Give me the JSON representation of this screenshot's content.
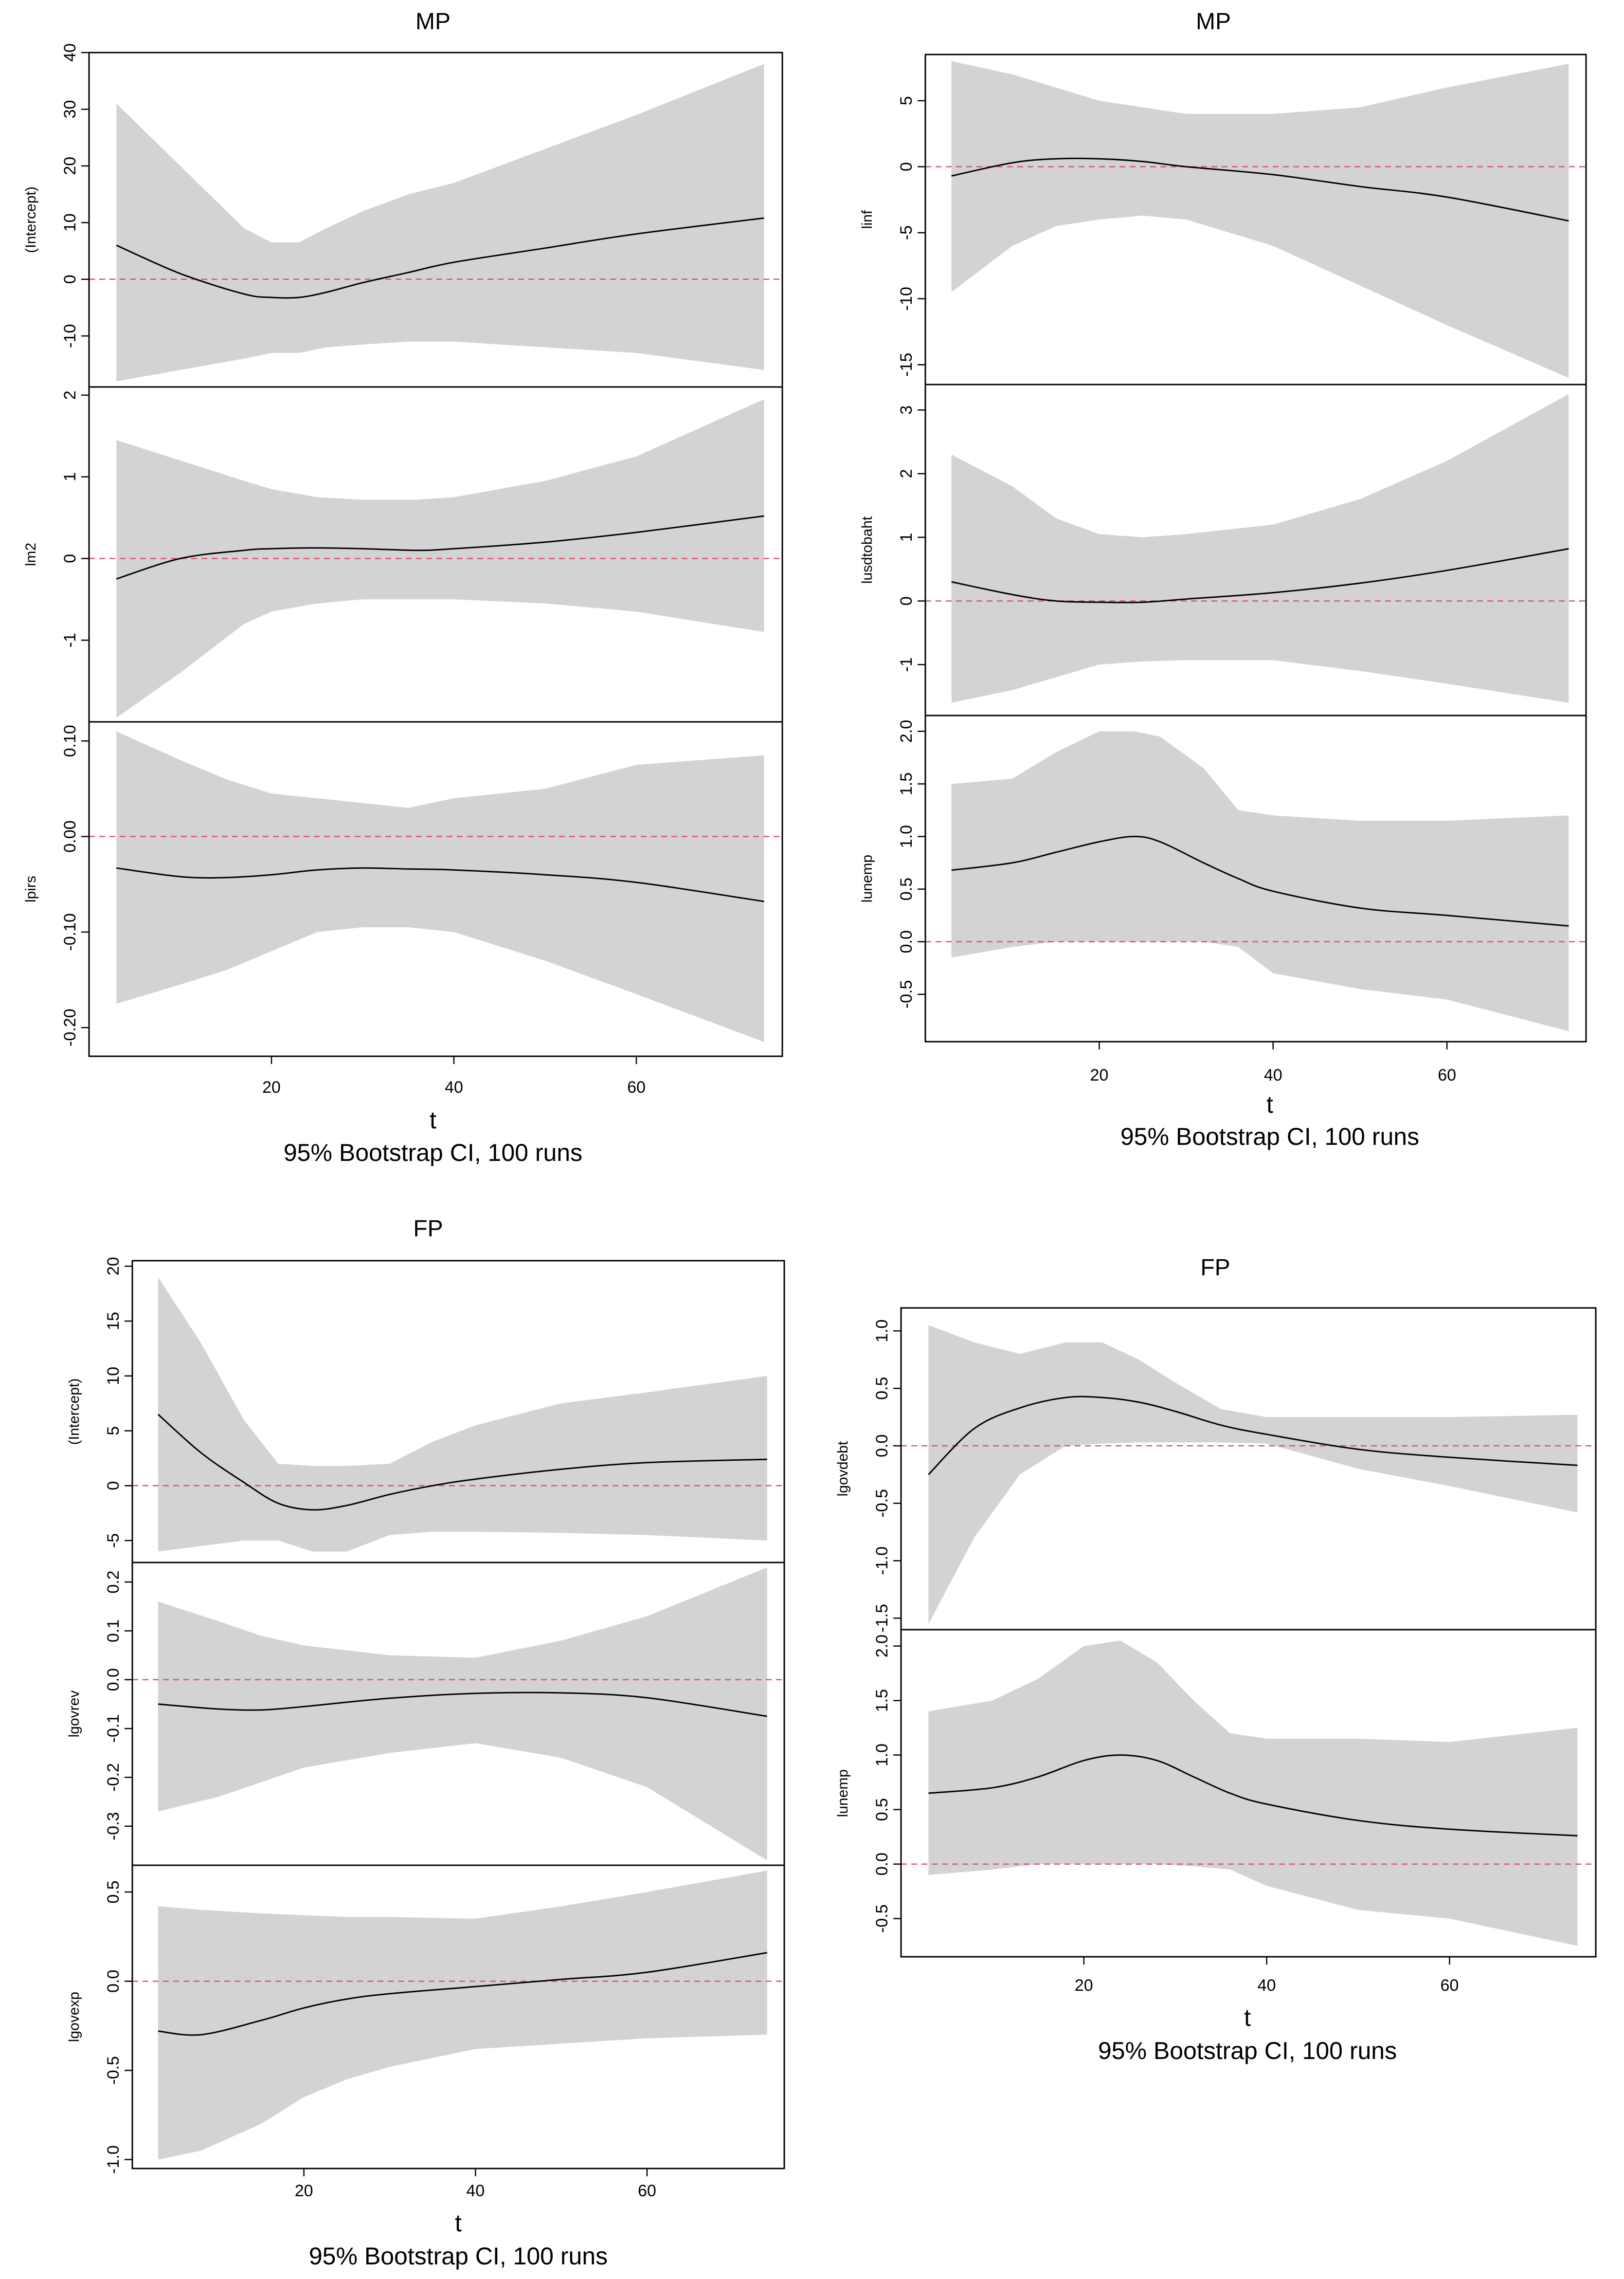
{
  "chart_data": [
    {
      "type": "line",
      "title": "MP",
      "xlabel": "t",
      "caption": "95% Bootstrap CI, 100 runs",
      "xlim": [
        0,
        76
      ],
      "xticks": [
        20,
        40,
        60
      ],
      "tick_labels": [
        "20",
        "40",
        "60"
      ],
      "panels": [
        {
          "ylabel": "(Intercept)",
          "ylim": [
            -19,
            40
          ],
          "yticks": [
            -10,
            0,
            10,
            20,
            30,
            40
          ],
          "tick_labels": [
            "-10",
            "0",
            "10",
            "20",
            "30",
            "40"
          ],
          "x": [
            3,
            10,
            17,
            20,
            23,
            26,
            30,
            35,
            40,
            50,
            60,
            74
          ],
          "estimate": [
            6,
            1,
            -2.6,
            -3.2,
            -3.2,
            -2.3,
            -0.6,
            1.2,
            3,
            5.5,
            8,
            10.8
          ],
          "upper": [
            31,
            20,
            9,
            6.5,
            6.5,
            9,
            12,
            15,
            17,
            23,
            29,
            38
          ],
          "lower": [
            -18,
            -16,
            -14,
            -13,
            -13,
            -12,
            -11.5,
            -11,
            -11,
            -12,
            -13,
            -16
          ]
        },
        {
          "ylabel": "lm2",
          "ylim": [
            -2,
            2.1
          ],
          "yticks": [
            -1,
            0,
            1,
            2
          ],
          "tick_labels": [
            "-1",
            "0",
            "1",
            "2"
          ],
          "x": [
            3,
            10,
            17,
            20,
            25,
            30,
            36,
            40,
            50,
            60,
            74
          ],
          "estimate": [
            -0.25,
            0,
            0.1,
            0.12,
            0.13,
            0.12,
            0.1,
            0.12,
            0.2,
            0.32,
            0.52
          ],
          "upper": [
            1.45,
            1.2,
            0.95,
            0.85,
            0.75,
            0.72,
            0.72,
            0.75,
            0.95,
            1.25,
            1.95
          ],
          "lower": [
            -1.95,
            -1.4,
            -0.8,
            -0.65,
            -0.55,
            -0.5,
            -0.5,
            -0.5,
            -0.55,
            -0.65,
            -0.9
          ]
        },
        {
          "ylabel": "lpirs",
          "ylim": [
            -0.23,
            0.12
          ],
          "yticks": [
            -0.2,
            -0.1,
            0,
            0.1
          ],
          "tick_labels": [
            "-0.20",
            "-0.10",
            "0.00",
            "0.10"
          ],
          "x": [
            3,
            10,
            15,
            20,
            25,
            30,
            35,
            40,
            50,
            60,
            74
          ],
          "estimate": [
            -0.033,
            -0.042,
            -0.043,
            -0.04,
            -0.035,
            -0.033,
            -0.034,
            -0.035,
            -0.04,
            -0.048,
            -0.068
          ],
          "upper": [
            0.11,
            0.08,
            0.06,
            0.045,
            0.04,
            0.035,
            0.03,
            0.04,
            0.05,
            0.075,
            0.085
          ],
          "lower": [
            -0.175,
            -0.155,
            -0.14,
            -0.12,
            -0.1,
            -0.095,
            -0.095,
            -0.1,
            -0.13,
            -0.165,
            -0.215
          ]
        }
      ]
    },
    {
      "type": "line",
      "title": "MP",
      "xlabel": "t",
      "caption": "95% Bootstrap CI, 100 runs",
      "xlim": [
        0,
        76
      ],
      "xticks": [
        20,
        40,
        60
      ],
      "tick_labels": [
        "20",
        "40",
        "60"
      ],
      "panels": [
        {
          "ylabel": "linf",
          "ylim": [
            -16.5,
            8.5
          ],
          "yticks": [
            -15,
            -10,
            -5,
            0,
            5
          ],
          "tick_labels": [
            "-15",
            "-10",
            "-5",
            "0",
            "5"
          ],
          "x": [
            3,
            10,
            15,
            20,
            25,
            30,
            40,
            50,
            60,
            74
          ],
          "estimate": [
            -0.7,
            0.3,
            0.6,
            0.6,
            0.4,
            0,
            -0.6,
            -1.5,
            -2.3,
            -4.1
          ],
          "upper": [
            8,
            7,
            6,
            5,
            4.5,
            4,
            4,
            4.5,
            6,
            7.8
          ],
          "lower": [
            -9.5,
            -6,
            -4.5,
            -4,
            -3.7,
            -4,
            -6,
            -9,
            -12,
            -16
          ]
        },
        {
          "ylabel": "lusdtobaht",
          "ylim": [
            -1.8,
            3.4
          ],
          "yticks": [
            -1,
            0,
            1,
            2,
            3
          ],
          "tick_labels": [
            "-1",
            "0",
            "1",
            "2",
            "3"
          ],
          "x": [
            3,
            10,
            15,
            20,
            25,
            30,
            40,
            50,
            60,
            74
          ],
          "estimate": [
            0.3,
            0.1,
            0,
            -0.02,
            -0.02,
            0.03,
            0.13,
            0.28,
            0.48,
            0.82
          ],
          "upper": [
            2.3,
            1.8,
            1.3,
            1.05,
            1.0,
            1.05,
            1.2,
            1.6,
            2.2,
            3.25
          ],
          "lower": [
            -1.6,
            -1.4,
            -1.2,
            -1.0,
            -0.95,
            -0.93,
            -0.93,
            -1.1,
            -1.3,
            -1.6
          ]
        },
        {
          "ylabel": "lunemp",
          "ylim": [
            -0.95,
            2.15
          ],
          "yticks": [
            -0.5,
            0,
            0.5,
            1,
            1.5,
            2
          ],
          "tick_labels": [
            "-0.5",
            "0.0",
            "0.5",
            "1.0",
            "1.5",
            "2.0"
          ],
          "x": [
            3,
            10,
            15,
            20,
            24,
            27,
            32,
            36,
            40,
            50,
            60,
            74
          ],
          "estimate": [
            0.68,
            0.75,
            0.85,
            0.95,
            1.0,
            0.95,
            0.75,
            0.6,
            0.48,
            0.32,
            0.25,
            0.15
          ],
          "upper": [
            1.5,
            1.55,
            1.8,
            2.0,
            2.0,
            1.95,
            1.65,
            1.25,
            1.2,
            1.15,
            1.15,
            1.2
          ],
          "lower": [
            -0.15,
            -0.05,
            0,
            0,
            0,
            0,
            0,
            -0.05,
            -0.3,
            -0.45,
            -0.55,
            -0.85
          ]
        }
      ]
    },
    {
      "type": "line",
      "title": "FP",
      "xlabel": "t",
      "caption": "95% Bootstrap CI, 100 runs",
      "xlim": [
        0,
        76
      ],
      "xticks": [
        20,
        40,
        60
      ],
      "tick_labels": [
        "20",
        "40",
        "60"
      ],
      "panels": [
        {
          "ylabel": "(Intercept)",
          "ylim": [
            -7,
            20.5
          ],
          "yticks": [
            -5,
            0,
            5,
            10,
            15,
            20
          ],
          "tick_labels": [
            "-5",
            "0",
            "5",
            "10",
            "15",
            "20"
          ],
          "x": [
            3,
            8,
            13,
            17,
            21,
            25,
            30,
            35,
            40,
            50,
            60,
            74
          ],
          "estimate": [
            6.5,
            3,
            0.3,
            -1.6,
            -2.2,
            -1.8,
            -0.8,
            0,
            0.6,
            1.5,
            2.1,
            2.4
          ],
          "upper": [
            19,
            13,
            6,
            2,
            1.8,
            1.8,
            2,
            4,
            5.5,
            7.5,
            8.5,
            10
          ],
          "lower": [
            -6,
            -5.5,
            -5,
            -5,
            -6,
            -6,
            -4.5,
            -4.2,
            -4.2,
            -4.3,
            -4.5,
            -5
          ]
        },
        {
          "ylabel": "lgovrev",
          "ylim": [
            -0.38,
            0.24
          ],
          "yticks": [
            -0.3,
            -0.2,
            -0.1,
            0,
            0.1,
            0.2
          ],
          "tick_labels": [
            "-0.3",
            "-0.2",
            "-0.1",
            "0.0",
            "0.1",
            "0.2"
          ],
          "x": [
            3,
            10,
            15,
            20,
            30,
            40,
            50,
            60,
            74
          ],
          "estimate": [
            -0.05,
            -0.06,
            -0.062,
            -0.055,
            -0.038,
            -0.028,
            -0.027,
            -0.037,
            -0.075
          ],
          "upper": [
            0.16,
            0.12,
            0.09,
            0.07,
            0.05,
            0.045,
            0.08,
            0.13,
            0.23
          ],
          "lower": [
            -0.27,
            -0.24,
            -0.21,
            -0.18,
            -0.15,
            -0.13,
            -0.16,
            -0.22,
            -0.37
          ]
        },
        {
          "ylabel": "lgovexp",
          "ylim": [
            -1.05,
            0.65
          ],
          "yticks": [
            -1,
            -0.5,
            0,
            0.5
          ],
          "tick_labels": [
            "-1.0",
            "-0.5",
            "0.0",
            "0.5"
          ],
          "x": [
            3,
            8,
            15,
            20,
            25,
            30,
            40,
            50,
            60,
            74
          ],
          "estimate": [
            -0.28,
            -0.3,
            -0.22,
            -0.15,
            -0.1,
            -0.07,
            -0.03,
            0.01,
            0.05,
            0.16
          ],
          "upper": [
            0.42,
            0.4,
            0.38,
            0.37,
            0.36,
            0.36,
            0.35,
            0.42,
            0.5,
            0.62
          ],
          "lower": [
            -1.0,
            -0.95,
            -0.8,
            -0.65,
            -0.55,
            -0.48,
            -0.38,
            -0.35,
            -0.32,
            -0.3
          ]
        }
      ]
    },
    {
      "type": "line",
      "title": "FP",
      "xlabel": "t",
      "caption": "95% Bootstrap CI, 100 runs",
      "xlim": [
        0,
        76
      ],
      "xticks": [
        20,
        40,
        60
      ],
      "tick_labels": [
        "20",
        "40",
        "60"
      ],
      "panels": [
        {
          "ylabel": "lgovdebt",
          "ylim": [
            -1.6,
            1.2
          ],
          "yticks": [
            -1.5,
            -1,
            -0.5,
            0,
            0.5,
            1
          ],
          "tick_labels": [
            "-1.5",
            "-1.0",
            "-0.5",
            "0.0",
            "0.5",
            "1.0"
          ],
          "x": [
            3,
            8,
            13,
            18,
            22,
            26,
            30,
            35,
            40,
            50,
            60,
            74
          ],
          "estimate": [
            -0.25,
            0.15,
            0.33,
            0.42,
            0.42,
            0.38,
            0.3,
            0.18,
            0.1,
            -0.03,
            -0.1,
            -0.17
          ],
          "upper": [
            1.05,
            0.9,
            0.8,
            0.9,
            0.9,
            0.75,
            0.55,
            0.32,
            0.25,
            0.25,
            0.25,
            0.27
          ],
          "lower": [
            -1.55,
            -0.8,
            -0.25,
            0,
            0.02,
            0.03,
            0.03,
            0.03,
            0.02,
            -0.2,
            -0.35,
            -0.58
          ]
        },
        {
          "ylabel": "lunemp",
          "ylim": [
            -0.85,
            2.15
          ],
          "yticks": [
            -0.5,
            0,
            0.5,
            1,
            1.5,
            2
          ],
          "tick_labels": [
            "-0.5",
            "0.0",
            "0.5",
            "1.0",
            "1.5",
            "2.0"
          ],
          "x": [
            3,
            10,
            15,
            20,
            24,
            28,
            32,
            36,
            40,
            50,
            60,
            74
          ],
          "estimate": [
            0.65,
            0.7,
            0.8,
            0.95,
            1.0,
            0.95,
            0.8,
            0.65,
            0.55,
            0.4,
            0.32,
            0.26
          ],
          "upper": [
            1.4,
            1.5,
            1.7,
            2.0,
            2.05,
            1.85,
            1.5,
            1.2,
            1.15,
            1.15,
            1.12,
            1.25
          ],
          "lower": [
            -0.1,
            -0.05,
            0,
            0,
            0,
            0,
            -0.02,
            -0.05,
            -0.2,
            -0.42,
            -0.5,
            -0.75
          ]
        }
      ]
    }
  ],
  "colors": {
    "band": "#d3d3d3",
    "line": "#000000",
    "zero_line": "#df536b",
    "frame": "#000000"
  }
}
